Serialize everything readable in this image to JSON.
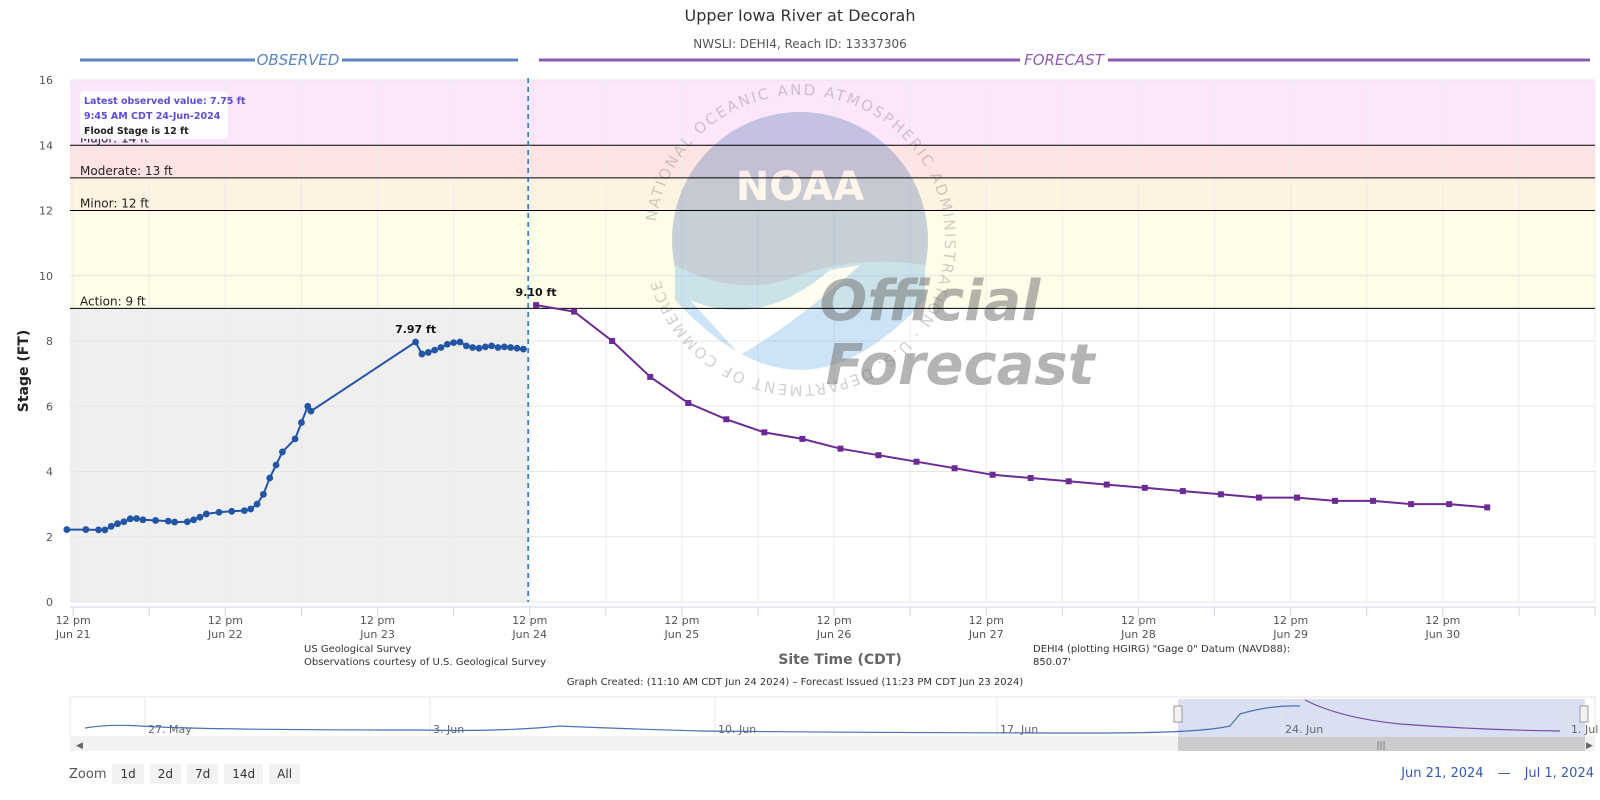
{
  "header": {
    "title": "Upper Iowa River at Decorah",
    "subtitle": "NWSLI: DEHI4, Reach ID: 13337306"
  },
  "sections": {
    "observed": "OBSERVED",
    "forecast": "FORECAST"
  },
  "info_box": {
    "latest": "Latest observed value: 7.75 ft",
    "time": "9:45 AM CDT 24-Jun-2024",
    "flood_stage": "Flood Stage is 12 ft"
  },
  "watermark": {
    "noaa": "NOAA",
    "ring_text": "NATIONAL OCEANIC AND ATMOSPHERIC ADMINISTRATION · U.S. DEPARTMENT OF COMMERCE",
    "line1": "Official",
    "line2": "Forecast"
  },
  "credits": {
    "usgs1": "US Geological Survey",
    "usgs2": "Observations courtesy of U.S. Geological Survey",
    "datum1": "DEHI4 (plotting HGIRG) \"Gage 0\" Datum (NAVD88):",
    "datum2": "850.07'",
    "created": "Graph Created: (11:10 AM CDT Jun 24 2024) – Forecast Issued (11:23 PM CDT Jun 23 2024)"
  },
  "zoom": {
    "label": "Zoom",
    "buttons": [
      "1d",
      "2d",
      "7d",
      "14d",
      "All"
    ]
  },
  "range": {
    "from": "Jun 21, 2024",
    "sep": "—",
    "to": "Jul 1, 2024"
  },
  "navigator": {
    "labels": [
      "27. May",
      "3. Jun",
      "10. Jun",
      "17. Jun",
      "24. Jun",
      "1. Jul"
    ]
  },
  "colors": {
    "observed": "#2255a4",
    "forecast": "#6b2a94",
    "major": "#fbe6fb",
    "moderate": "#fde3e3",
    "minor": "#fef2e1",
    "action": "#fefde8",
    "observed_bg": "#efefef",
    "header_line_obs": "#5b84c4",
    "header_line_fcst": "#8e5ab0"
  },
  "chart_data": {
    "type": "line",
    "ylabel": "Stage (FT)",
    "xlabel": "Site Time (CDT)",
    "ylim": [
      0,
      16
    ],
    "yticks": [
      0,
      2,
      4,
      6,
      8,
      10,
      12,
      14,
      16
    ],
    "xlim_hours": [
      -0.5,
      240
    ],
    "xticks": [
      {
        "h": 0,
        "l1": "12 pm",
        "l2": "Jun 21"
      },
      {
        "h": 24,
        "l1": "12 pm",
        "l2": "Jun 22"
      },
      {
        "h": 48,
        "l1": "12 pm",
        "l2": "Jun 23"
      },
      {
        "h": 72,
        "l1": "12 pm",
        "l2": "Jun 24"
      },
      {
        "h": 96,
        "l1": "12 pm",
        "l2": "Jun 25"
      },
      {
        "h": 120,
        "l1": "12 pm",
        "l2": "Jun 26"
      },
      {
        "h": 144,
        "l1": "12 pm",
        "l2": "Jun 27"
      },
      {
        "h": 168,
        "l1": "12 pm",
        "l2": "Jun 28"
      },
      {
        "h": 192,
        "l1": "12 pm",
        "l2": "Jun 29"
      },
      {
        "h": 216,
        "l1": "12 pm",
        "l2": "Jun 30"
      }
    ],
    "thresholds": [
      {
        "name": "Major",
        "label": "Major: 14 ft",
        "value": 14
      },
      {
        "name": "Moderate",
        "label": "Moderate: 13 ft",
        "value": 13
      },
      {
        "name": "Minor",
        "label": "Minor: 12 ft",
        "value": 12
      },
      {
        "name": "Action",
        "label": "Action: 9 ft",
        "value": 9
      }
    ],
    "now_hour": 71.75,
    "series": [
      {
        "name": "Observed",
        "peak_label": "7.97 ft",
        "peak_index": 30,
        "points": [
          [
            -1,
            2.22
          ],
          [
            2,
            2.22
          ],
          [
            4,
            2.21
          ],
          [
            5,
            2.21
          ],
          [
            6,
            2.32
          ],
          [
            7,
            2.4
          ],
          [
            8,
            2.46
          ],
          [
            9,
            2.55
          ],
          [
            10,
            2.56
          ],
          [
            11,
            2.52
          ],
          [
            13,
            2.5
          ],
          [
            15,
            2.48
          ],
          [
            16,
            2.45
          ],
          [
            18,
            2.46
          ],
          [
            19,
            2.52
          ],
          [
            20,
            2.6
          ],
          [
            21,
            2.7
          ],
          [
            23,
            2.75
          ],
          [
            25,
            2.78
          ],
          [
            27,
            2.8
          ],
          [
            28,
            2.85
          ],
          [
            29,
            3.0
          ],
          [
            30,
            3.3
          ],
          [
            31,
            3.8
          ],
          [
            32,
            4.2
          ],
          [
            33,
            4.6
          ],
          [
            35,
            5.0
          ],
          [
            36,
            5.5
          ],
          [
            37,
            6.0
          ],
          [
            37.5,
            5.85
          ],
          [
            54,
            7.97
          ],
          [
            55,
            7.6
          ],
          [
            56,
            7.65
          ],
          [
            57,
            7.72
          ],
          [
            58,
            7.8
          ],
          [
            59,
            7.9
          ],
          [
            60,
            7.95
          ],
          [
            61,
            7.97
          ],
          [
            62,
            7.85
          ],
          [
            63,
            7.8
          ],
          [
            64,
            7.78
          ],
          [
            65,
            7.82
          ],
          [
            66,
            7.85
          ],
          [
            67,
            7.8
          ],
          [
            68,
            7.82
          ],
          [
            69,
            7.8
          ],
          [
            70,
            7.78
          ],
          [
            71,
            7.75
          ]
        ]
      },
      {
        "name": "Forecast",
        "peak_label": "9.10 ft",
        "peak_index": 0,
        "points": [
          [
            73,
            9.1
          ],
          [
            79,
            8.9
          ],
          [
            85,
            8.0
          ],
          [
            91,
            6.9
          ],
          [
            97,
            6.1
          ],
          [
            103,
            5.6
          ],
          [
            109,
            5.2
          ],
          [
            115,
            5.0
          ],
          [
            121,
            4.7
          ],
          [
            127,
            4.5
          ],
          [
            133,
            4.3
          ],
          [
            139,
            4.1
          ],
          [
            145,
            3.9
          ],
          [
            151,
            3.8
          ],
          [
            157,
            3.7
          ],
          [
            163,
            3.6
          ],
          [
            169,
            3.5
          ],
          [
            175,
            3.4
          ],
          [
            181,
            3.3
          ],
          [
            187,
            3.2
          ],
          [
            193,
            3.2
          ],
          [
            199,
            3.1
          ],
          [
            205,
            3.1
          ],
          [
            211,
            3.0
          ],
          [
            217,
            3.0
          ],
          [
            223,
            2.9
          ]
        ]
      }
    ]
  }
}
